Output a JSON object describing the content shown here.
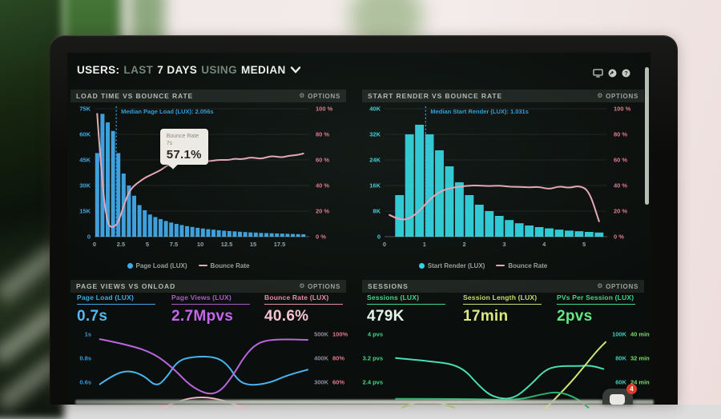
{
  "header": {
    "prefix": "USERS:",
    "muted1": "LAST",
    "strong1": "7 DAYS",
    "muted2": "USING",
    "strong2": "MEDIAN"
  },
  "options_label": "OPTIONS",
  "chat": {
    "badge_count": "4"
  },
  "chart_data": [
    {
      "id": "load_time_vs_bounce_rate",
      "type": "bar+line",
      "title": "LOAD TIME VS BOUNCE RATE",
      "x_unit": "seconds",
      "x_max": 20,
      "bar_step": 0.5,
      "x_ticks": [
        "0",
        "2.5",
        "5",
        "7.5",
        "10",
        "12.5",
        "15",
        "17.5"
      ],
      "x_tick_values": [
        0,
        2.5,
        5,
        7.5,
        10,
        12.5,
        15,
        17.5
      ],
      "y_left_labels": [
        "75K",
        "60K",
        "45K",
        "30K",
        "15K",
        "0"
      ],
      "y_left_max": 75,
      "y_right_labels": [
        "100 %",
        "80 %",
        "60 %",
        "40 %",
        "20 %",
        "0 %"
      ],
      "y_right_max": 100,
      "bars_k": [
        49,
        72,
        67,
        62,
        49,
        37,
        30,
        24,
        18.5,
        15.5,
        13,
        11.5,
        10.3,
        9.2,
        8.3,
        7.5,
        6.8,
        6.2,
        5.7,
        5.2,
        4.8,
        4.4,
        4.1,
        3.8,
        3.5,
        3.3,
        3.1,
        2.9,
        2.7,
        2.5,
        2.4,
        2.2,
        2.1,
        2.0,
        1.9,
        1.8,
        1.7,
        1.6,
        1.5,
        1.4
      ],
      "bounce_pct": [
        96,
        38,
        9,
        7,
        11,
        24,
        35,
        40,
        43,
        46,
        48,
        50,
        52,
        55,
        57.1,
        57,
        57.5,
        58,
        58,
        58.5,
        59,
        59,
        59.5,
        60,
        60,
        60,
        61,
        60.5,
        61,
        62,
        61.5,
        61,
        62,
        63,
        62.5,
        62,
        63,
        63.5,
        64,
        65
      ],
      "median": {
        "x": 2.056,
        "label": "Median Page Load (LUX): 2.056s"
      },
      "tooltip": {
        "point_index": 14,
        "title": "Bounce Rate",
        "sub": "7s",
        "value": "57.1%"
      },
      "legend": [
        {
          "label": "Page Load (LUX)"
        },
        {
          "label": "Bounce Rate"
        }
      ],
      "bar_color": "#41a9e9",
      "line_color": "#e7a8ba",
      "left_axis_color": "#3fa9e8",
      "right_axis_color": "#e2798f",
      "median_color": "#2f9fdd"
    },
    {
      "id": "start_render_vs_bounce_rate",
      "type": "bar+line",
      "title": "START RENDER VS BOUNCE RATE",
      "x_unit": "seconds",
      "x_max": 5.5,
      "bar_step": 0.25,
      "x_ticks": [
        "0",
        "1",
        "2",
        "3",
        "4",
        "5"
      ],
      "x_tick_values": [
        0,
        1,
        2,
        3,
        4,
        5
      ],
      "y_left_labels": [
        "40K",
        "32K",
        "24K",
        "16K",
        "8K",
        "0"
      ],
      "y_left_max": 40,
      "y_right_labels": [
        "100 %",
        "80 %",
        "60 %",
        "40 %",
        "20 %",
        "0 %"
      ],
      "y_right_max": 100,
      "bars_k": [
        0,
        13,
        32,
        35,
        32,
        27,
        22,
        17,
        13,
        10,
        8,
        6.5,
        5.2,
        4.2,
        3.5,
        3.0,
        2.6,
        2.2,
        1.9,
        1.7,
        1.5,
        1.3
      ],
      "bounce_pct": [
        17,
        13,
        14,
        20,
        29,
        35,
        38,
        39,
        40,
        40,
        39.5,
        40,
        39,
        39,
        38.5,
        39,
        37,
        39.5,
        38,
        40,
        36,
        12
      ],
      "median": {
        "x": 1.031,
        "label": "Median Start Render (LUX): 1.031s"
      },
      "legend": [
        {
          "label": "Start Render (LUX)"
        },
        {
          "label": "Bounce Rate"
        }
      ],
      "bar_color": "#30d6e2",
      "line_color": "#e7a8ba",
      "left_axis_color": "#38d4dc",
      "right_axis_color": "#e2798f",
      "median_color": "#2f9fdd"
    },
    {
      "id": "page_views_vs_onload",
      "type": "line",
      "title": "PAGE VIEWS VS ONLOAD",
      "metrics": [
        {
          "label": "Page Load (LUX)",
          "value": "0.7s",
          "label_color": "#3fa9e8",
          "value_color": "#54b9f2"
        },
        {
          "label": "Page Views (LUX)",
          "value": "2.7Mpvs",
          "label_color": "#a55fc4",
          "value_color": "#c566ee"
        },
        {
          "label": "Bounce Rate (LUX)",
          "value": "40.6%",
          "label_color": "#e98cab",
          "value_color": "#f6c2d2"
        }
      ],
      "y_left_labels": [
        "1s",
        "0.8s",
        "0.6s"
      ],
      "y_left_color": "#3a9bd4",
      "y_right_rows": [
        [
          "500K",
          "100%"
        ],
        [
          "400K",
          "80%"
        ],
        [
          "300K",
          "60%"
        ]
      ],
      "y_right_colors": [
        "#928b9e",
        "#e2798f"
      ],
      "series": [
        {
          "name": "Page Load",
          "color": "#49b4f0",
          "points": [
            [
              0.01,
              0.72
            ],
            [
              0.08,
              0.58
            ],
            [
              0.15,
              0.53
            ],
            [
              0.22,
              0.6
            ],
            [
              0.28,
              0.76
            ],
            [
              0.33,
              0.62
            ],
            [
              0.38,
              0.4
            ],
            [
              0.45,
              0.34
            ],
            [
              0.56,
              0.34
            ],
            [
              0.62,
              0.45
            ],
            [
              0.67,
              0.68
            ],
            [
              0.73,
              0.74
            ],
            [
              0.82,
              0.7
            ],
            [
              0.9,
              0.6
            ],
            [
              1.0,
              0.52
            ]
          ]
        },
        {
          "name": "Page Views",
          "color": "#b965dd",
          "points": [
            [
              0.01,
              0.1
            ],
            [
              0.15,
              0.18
            ],
            [
              0.27,
              0.3
            ],
            [
              0.36,
              0.5
            ],
            [
              0.44,
              0.74
            ],
            [
              0.52,
              0.86
            ],
            [
              0.58,
              0.83
            ],
            [
              0.64,
              0.62
            ],
            [
              0.7,
              0.33
            ],
            [
              0.76,
              0.15
            ],
            [
              0.84,
              0.1
            ],
            [
              1.0,
              0.11
            ]
          ]
        },
        {
          "name": "Bounce Rate",
          "color": "#f0b6c8",
          "points": [
            [
              0.3,
              1.05
            ],
            [
              0.4,
              0.93
            ],
            [
              0.5,
              0.89
            ],
            [
              0.6,
              0.94
            ],
            [
              0.7,
              1.05
            ]
          ]
        }
      ]
    },
    {
      "id": "sessions",
      "type": "line",
      "title": "SESSIONS",
      "metrics": [
        {
          "label": "Sessions (LUX)",
          "value": "479K",
          "label_color": "#3fd98a",
          "value_color": "#e6f7ea"
        },
        {
          "label": "Session Length (LUX)",
          "value": "17min",
          "label_color": "#c8dc72",
          "value_color": "#dcea84"
        },
        {
          "label": "PVs Per Session (LUX)",
          "value": "2pvs",
          "label_color": "#3fd98a",
          "value_color": "#66e682"
        }
      ],
      "y_left_labels": [
        "4 pvs",
        "3.2 pvs",
        "2.4 pvs"
      ],
      "y_left_color": "#3fd98a",
      "y_right_rows": [
        [
          "100K",
          "40 min"
        ],
        [
          "80K",
          "32 min"
        ],
        [
          "60K",
          "24 min"
        ]
      ],
      "y_right_colors": [
        "#3ecfc0",
        "#7ddc6a"
      ],
      "series": [
        {
          "name": "PVs Per Session",
          "color": "#49dfb2",
          "points": [
            [
              0.03,
              0.36
            ],
            [
              0.18,
              0.4
            ],
            [
              0.33,
              0.46
            ],
            [
              0.42,
              0.76
            ],
            [
              0.48,
              0.9
            ],
            [
              0.57,
              0.93
            ],
            [
              0.65,
              0.74
            ],
            [
              0.72,
              0.52
            ],
            [
              0.78,
              0.47
            ],
            [
              0.87,
              0.47
            ],
            [
              0.93,
              0.46
            ],
            [
              0.99,
              0.51
            ]
          ]
        },
        {
          "name": "Session Length",
          "color": "#cfe37a",
          "points": [
            [
              0.72,
              1.06
            ],
            [
              0.82,
              0.76
            ],
            [
              0.9,
              0.48
            ],
            [
              0.96,
              0.26
            ],
            [
              1.0,
              0.14
            ]
          ]
        },
        {
          "name": "Session Length",
          "color": "#aabf66",
          "points": [
            [
              0.06,
              1.04
            ],
            [
              0.12,
              0.96
            ],
            [
              0.22,
              0.96
            ],
            [
              0.3,
              1.04
            ]
          ]
        },
        {
          "name": "Sessions",
          "color": "#2fae6d",
          "points": [
            [
              0.03,
              0.92
            ],
            [
              0.4,
              0.92
            ],
            [
              0.52,
              0.94
            ],
            [
              0.62,
              0.92
            ],
            [
              0.7,
              0.86
            ],
            [
              0.78,
              0.82
            ],
            [
              0.86,
              0.9
            ],
            [
              0.92,
              1.04
            ]
          ]
        }
      ]
    }
  ]
}
